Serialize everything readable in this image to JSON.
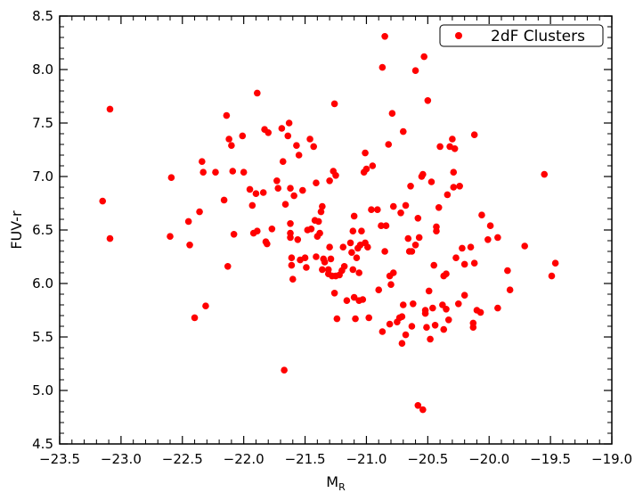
{
  "chart_data": {
    "type": "scatter",
    "xlabel": "M",
    "xlabel_sub": "R",
    "ylabel": "FUV-r",
    "xlim": [
      -23.5,
      -19.0
    ],
    "ylim": [
      4.5,
      8.5
    ],
    "grid": false,
    "legend_position": "top-right",
    "x_ticks": [
      -23.5,
      -23.0,
      -22.5,
      -22.0,
      -21.5,
      -21.0,
      -20.5,
      -20.0,
      -19.5,
      -19.0
    ],
    "x_tick_labels": [
      "−23.5",
      "−23.0",
      "−22.5",
      "−22.0",
      "−21.5",
      "−21.0",
      "−20.5",
      "−20.0",
      "−19.5",
      "−19.0"
    ],
    "y_ticks": [
      4.5,
      5.0,
      5.5,
      6.0,
      6.5,
      7.0,
      7.5,
      8.0,
      8.5
    ],
    "y_tick_labels": [
      "4.5",
      "5.0",
      "5.5",
      "6.0",
      "6.5",
      "7.0",
      "7.5",
      "8.0",
      "8.5"
    ],
    "series": [
      {
        "name": "2dF Clusters",
        "color": "#ff0000",
        "marker": "circle",
        "points": [
          [
            -23.15,
            6.77
          ],
          [
            -23.09,
            7.63
          ],
          [
            -23.09,
            6.42
          ],
          [
            -22.6,
            6.44
          ],
          [
            -22.59,
            6.99
          ],
          [
            -22.45,
            6.58
          ],
          [
            -22.44,
            6.36
          ],
          [
            -22.4,
            5.68
          ],
          [
            -22.36,
            6.67
          ],
          [
            -22.34,
            7.14
          ],
          [
            -22.33,
            7.04
          ],
          [
            -22.31,
            5.79
          ],
          [
            -22.23,
            7.04
          ],
          [
            -22.16,
            6.78
          ],
          [
            -22.14,
            7.57
          ],
          [
            -22.13,
            6.16
          ],
          [
            -22.12,
            7.35
          ],
          [
            -22.1,
            7.29
          ],
          [
            -22.09,
            7.05
          ],
          [
            -22.08,
            6.46
          ],
          [
            -22.01,
            7.38
          ],
          [
            -22.0,
            7.04
          ],
          [
            -21.95,
            6.88
          ],
          [
            -21.93,
            6.73
          ],
          [
            -21.92,
            6.47
          ],
          [
            -21.9,
            6.84
          ],
          [
            -21.89,
            6.49
          ],
          [
            -21.89,
            7.78
          ],
          [
            -21.84,
            6.85
          ],
          [
            -21.83,
            7.44
          ],
          [
            -21.82,
            6.39
          ],
          [
            -21.81,
            6.37
          ],
          [
            -21.8,
            7.41
          ],
          [
            -21.77,
            6.51
          ],
          [
            -21.73,
            6.96
          ],
          [
            -21.72,
            6.89
          ],
          [
            -21.69,
            7.45
          ],
          [
            -21.68,
            7.14
          ],
          [
            -21.67,
            5.19
          ],
          [
            -21.66,
            6.74
          ],
          [
            -21.64,
            7.38
          ],
          [
            -21.63,
            7.5
          ],
          [
            -21.62,
            6.89
          ],
          [
            -21.62,
            6.56
          ],
          [
            -21.62,
            6.47
          ],
          [
            -21.62,
            6.43
          ],
          [
            -21.61,
            6.24
          ],
          [
            -21.61,
            6.17
          ],
          [
            -21.6,
            6.04
          ],
          [
            -21.59,
            6.82
          ],
          [
            -21.57,
            7.29
          ],
          [
            -21.56,
            6.41
          ],
          [
            -21.55,
            7.2
          ],
          [
            -21.54,
            6.22
          ],
          [
            -21.52,
            6.87
          ],
          [
            -21.5,
            6.24
          ],
          [
            -21.49,
            6.15
          ],
          [
            -21.48,
            6.5
          ],
          [
            -21.46,
            7.35
          ],
          [
            -21.45,
            6.51
          ],
          [
            -21.43,
            7.28
          ],
          [
            -21.42,
            6.59
          ],
          [
            -21.41,
            6.25
          ],
          [
            -21.41,
            6.94
          ],
          [
            -21.4,
            6.44
          ],
          [
            -21.39,
            6.58
          ],
          [
            -21.38,
            6.47
          ],
          [
            -21.37,
            6.67
          ],
          [
            -21.36,
            6.13
          ],
          [
            -21.36,
            6.72
          ],
          [
            -21.35,
            6.23
          ],
          [
            -21.34,
            6.2
          ],
          [
            -21.31,
            6.13
          ],
          [
            -21.31,
            6.09
          ],
          [
            -21.3,
            6.34
          ],
          [
            -21.3,
            6.96
          ],
          [
            -21.29,
            6.23
          ],
          [
            -21.28,
            6.07
          ],
          [
            -21.27,
            7.05
          ],
          [
            -21.26,
            7.68
          ],
          [
            -21.26,
            5.91
          ],
          [
            -21.25,
            6.07
          ],
          [
            -21.25,
            7.01
          ],
          [
            -21.24,
            5.67
          ],
          [
            -21.22,
            6.08
          ],
          [
            -21.2,
            6.12
          ],
          [
            -21.19,
            6.34
          ],
          [
            -21.18,
            6.16
          ],
          [
            -21.16,
            5.84
          ],
          [
            -21.13,
            6.38
          ],
          [
            -21.12,
            6.29
          ],
          [
            -21.11,
            6.49
          ],
          [
            -21.11,
            6.13
          ],
          [
            -21.1,
            6.63
          ],
          [
            -21.1,
            5.87
          ],
          [
            -21.09,
            5.67
          ],
          [
            -21.08,
            6.24
          ],
          [
            -21.07,
            6.33
          ],
          [
            -21.06,
            5.84
          ],
          [
            -21.06,
            6.1
          ],
          [
            -21.05,
            6.36
          ],
          [
            -21.04,
            6.49
          ],
          [
            -21.03,
            5.85
          ],
          [
            -21.02,
            7.04
          ],
          [
            -21.01,
            6.38
          ],
          [
            -21.01,
            7.22
          ],
          [
            -21.0,
            7.07
          ],
          [
            -20.99,
            6.34
          ],
          [
            -20.98,
            5.68
          ],
          [
            -20.96,
            6.69
          ],
          [
            -20.95,
            7.1
          ],
          [
            -20.91,
            6.69
          ],
          [
            -20.9,
            5.94
          ],
          [
            -20.88,
            6.54
          ],
          [
            -20.87,
            5.55
          ],
          [
            -20.87,
            8.02
          ],
          [
            -20.85,
            8.31
          ],
          [
            -20.85,
            6.3
          ],
          [
            -20.84,
            6.54
          ],
          [
            -20.82,
            7.3
          ],
          [
            -20.81,
            6.07
          ],
          [
            -20.81,
            5.62
          ],
          [
            -20.8,
            5.99
          ],
          [
            -20.79,
            7.59
          ],
          [
            -20.78,
            6.1
          ],
          [
            -20.78,
            6.72
          ],
          [
            -20.75,
            5.64
          ],
          [
            -20.73,
            5.68
          ],
          [
            -20.72,
            6.66
          ],
          [
            -20.71,
            5.69
          ],
          [
            -20.71,
            5.44
          ],
          [
            -20.7,
            7.42
          ],
          [
            -20.7,
            5.8
          ],
          [
            -20.68,
            6.73
          ],
          [
            -20.68,
            5.52
          ],
          [
            -20.66,
            6.42
          ],
          [
            -20.65,
            6.3
          ],
          [
            -20.64,
            6.91
          ],
          [
            -20.63,
            6.3
          ],
          [
            -20.63,
            5.6
          ],
          [
            -20.62,
            5.81
          ],
          [
            -20.6,
            6.36
          ],
          [
            -20.6,
            7.99
          ],
          [
            -20.58,
            6.61
          ],
          [
            -20.58,
            4.86
          ],
          [
            -20.57,
            6.43
          ],
          [
            -20.55,
            7.0
          ],
          [
            -20.54,
            7.02
          ],
          [
            -20.54,
            4.82
          ],
          [
            -20.53,
            8.12
          ],
          [
            -20.52,
            5.72
          ],
          [
            -20.52,
            5.75
          ],
          [
            -20.51,
            5.59
          ],
          [
            -20.5,
            7.71
          ],
          [
            -20.49,
            5.93
          ],
          [
            -20.48,
            5.48
          ],
          [
            -20.47,
            6.95
          ],
          [
            -20.46,
            5.77
          ],
          [
            -20.45,
            6.17
          ],
          [
            -20.44,
            5.61
          ],
          [
            -20.43,
            6.49
          ],
          [
            -20.43,
            6.53
          ],
          [
            -20.41,
            6.71
          ],
          [
            -20.4,
            7.28
          ],
          [
            -20.38,
            5.8
          ],
          [
            -20.37,
            5.57
          ],
          [
            -20.37,
            6.07
          ],
          [
            -20.35,
            5.76
          ],
          [
            -20.35,
            6.09
          ],
          [
            -20.34,
            6.83
          ],
          [
            -20.33,
            5.66
          ],
          [
            -20.32,
            7.28
          ],
          [
            -20.3,
            7.35
          ],
          [
            -20.29,
            6.9
          ],
          [
            -20.29,
            7.04
          ],
          [
            -20.28,
            7.26
          ],
          [
            -20.27,
            6.24
          ],
          [
            -20.25,
            5.81
          ],
          [
            -20.24,
            6.91
          ],
          [
            -20.22,
            6.33
          ],
          [
            -20.2,
            5.89
          ],
          [
            -20.2,
            6.18
          ],
          [
            -20.15,
            6.34
          ],
          [
            -20.13,
            5.63
          ],
          [
            -20.13,
            5.59
          ],
          [
            -20.12,
            7.39
          ],
          [
            -20.12,
            6.19
          ],
          [
            -20.1,
            5.75
          ],
          [
            -20.07,
            5.73
          ],
          [
            -20.06,
            6.64
          ],
          [
            -20.01,
            6.41
          ],
          [
            -19.99,
            6.54
          ],
          [
            -19.93,
            6.43
          ],
          [
            -19.93,
            5.77
          ],
          [
            -19.85,
            6.12
          ],
          [
            -19.83,
            5.94
          ],
          [
            -19.71,
            6.35
          ],
          [
            -19.55,
            7.02
          ],
          [
            -19.49,
            6.07
          ],
          [
            -19.46,
            6.19
          ]
        ]
      }
    ]
  }
}
